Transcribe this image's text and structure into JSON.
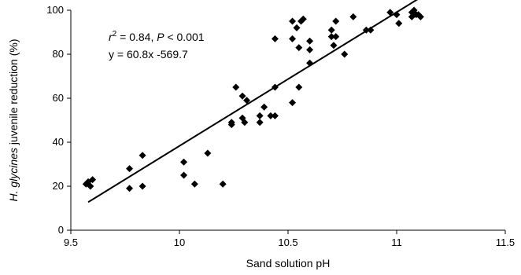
{
  "chart_data": {
    "type": "scatter",
    "title": "",
    "xlabel": "Sand solution pH",
    "ylabel_italic": "H. glycines",
    "ylabel_rest": " juvenile reduction (%)",
    "xlim": [
      9.5,
      11.5
    ],
    "ylim": [
      0,
      100
    ],
    "xticks": [
      "9.5",
      "10",
      "10.5",
      "11",
      "11.5"
    ],
    "yticks": [
      "0",
      "20",
      "40",
      "60",
      "80",
      "100"
    ],
    "grid": false,
    "marker": "diamond",
    "marker_color": "#000000",
    "annotations": {
      "r2_prefix": "r",
      "r2_sup": "2",
      "r2_value": " = 0.84, ",
      "p_symbol": "P",
      "p_value": " < 0.001",
      "equation": "y = 60.8x -569.7"
    },
    "trendline": {
      "slope": 60.8,
      "intercept": -569.7,
      "x_range": [
        9.58,
        11.1
      ]
    },
    "points": [
      [
        9.57,
        21
      ],
      [
        9.58,
        22
      ],
      [
        9.59,
        20
      ],
      [
        9.6,
        23
      ],
      [
        9.77,
        28
      ],
      [
        9.77,
        19
      ],
      [
        9.83,
        34
      ],
      [
        9.83,
        20
      ],
      [
        10.02,
        31
      ],
      [
        10.02,
        25
      ],
      [
        10.07,
        21
      ],
      [
        10.13,
        35
      ],
      [
        10.2,
        21
      ],
      [
        10.24,
        49
      ],
      [
        10.24,
        48
      ],
      [
        10.26,
        65
      ],
      [
        10.29,
        61
      ],
      [
        10.29,
        51
      ],
      [
        10.3,
        49
      ],
      [
        10.31,
        59
      ],
      [
        10.37,
        52
      ],
      [
        10.37,
        49
      ],
      [
        10.39,
        56
      ],
      [
        10.42,
        52
      ],
      [
        10.44,
        52
      ],
      [
        10.44,
        87
      ],
      [
        10.44,
        65
      ],
      [
        10.52,
        95
      ],
      [
        10.52,
        87
      ],
      [
        10.52,
        58
      ],
      [
        10.54,
        92
      ],
      [
        10.55,
        83
      ],
      [
        10.55,
        65
      ],
      [
        10.56,
        95
      ],
      [
        10.57,
        96
      ],
      [
        10.6,
        86
      ],
      [
        10.6,
        82
      ],
      [
        10.6,
        76
      ],
      [
        10.7,
        91
      ],
      [
        10.7,
        88
      ],
      [
        10.71,
        84
      ],
      [
        10.72,
        95
      ],
      [
        10.72,
        88
      ],
      [
        10.76,
        80
      ],
      [
        10.8,
        97
      ],
      [
        10.86,
        91
      ],
      [
        10.88,
        91
      ],
      [
        10.97,
        99
      ],
      [
        11.0,
        98
      ],
      [
        11.01,
        94
      ],
      [
        11.07,
        99
      ],
      [
        11.07,
        97
      ],
      [
        11.08,
        100
      ],
      [
        11.09,
        98
      ],
      [
        11.1,
        98
      ],
      [
        11.11,
        97
      ]
    ]
  }
}
